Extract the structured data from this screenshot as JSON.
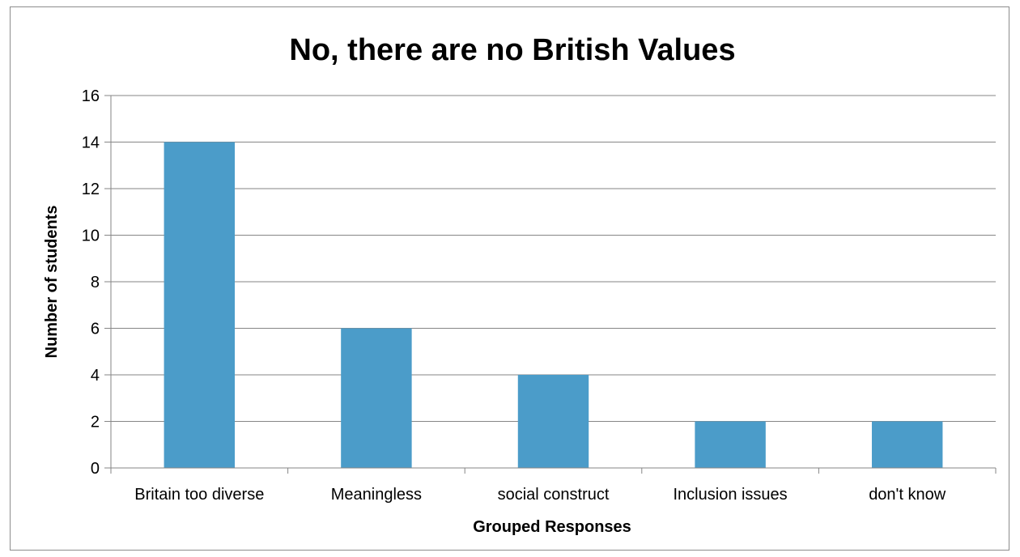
{
  "chart_data": {
    "type": "bar",
    "title": "No, there are no British Values",
    "xlabel": "Grouped Responses",
    "ylabel": "Number of students",
    "categories": [
      "Britain too diverse",
      "Meaningless",
      "social construct",
      "Inclusion issues",
      "don't know"
    ],
    "values": [
      14,
      6,
      4,
      2,
      2
    ],
    "ylim": [
      0,
      16
    ],
    "yticks": [
      "0",
      "2",
      "4",
      "6",
      "8",
      "10",
      "12",
      "14",
      "16"
    ],
    "grid": true,
    "legend": "none",
    "colors": {
      "bar": "#4b9cc9",
      "grid": "#868686",
      "axis": "#868686"
    }
  }
}
